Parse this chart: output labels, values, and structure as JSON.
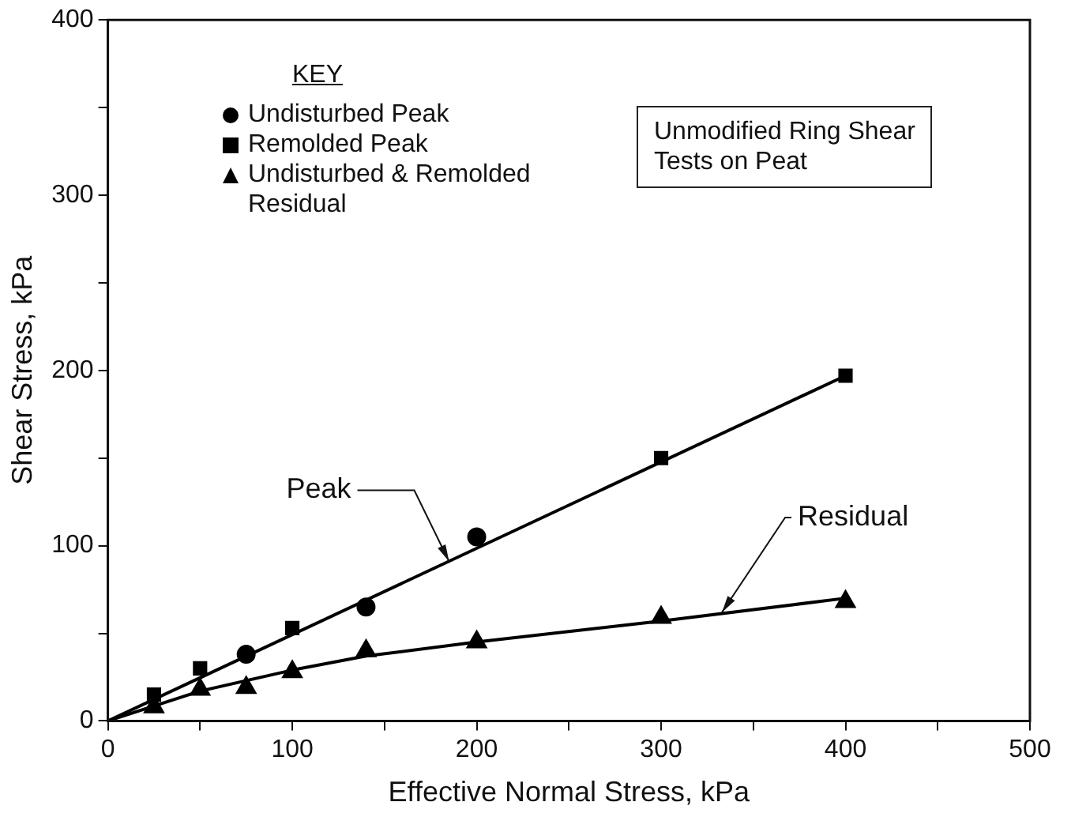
{
  "chart_data": {
    "type": "scatter",
    "xlabel": "Effective Normal Stress, kPa",
    "ylabel": "Shear Stress, kPa",
    "legend_title": "KEY",
    "legend": "top left",
    "xlim": [
      0,
      500
    ],
    "xticks": [
      0,
      {
        "value": 50,
        "label": null
      },
      100,
      {
        "value": 150,
        "label": null
      },
      200,
      {
        "value": 250,
        "label": null
      },
      300,
      {
        "value": 350,
        "label": null
      },
      400,
      {
        "value": 450,
        "label": null
      },
      500
    ],
    "ylim": [
      0,
      400
    ],
    "yticks": [
      0,
      {
        "value": 50,
        "label": null
      },
      100,
      {
        "value": 150,
        "label": null
      },
      200,
      {
        "value": 250,
        "label": null
      },
      300,
      {
        "value": 350,
        "label": null
      },
      400
    ],
    "grid": false,
    "series": [
      {
        "name": "Undisturbed Peak",
        "color": "#000000",
        "marker": "circle",
        "x": [
          75,
          140,
          200
        ],
        "values": [
          38,
          65,
          105
        ]
      },
      {
        "name": "Remolded Peak",
        "color": "#000000",
        "marker": "square",
        "x": [
          25,
          50,
          100,
          300,
          400
        ],
        "values": [
          15,
          30,
          53,
          150,
          197
        ]
      },
      {
        "name": "Undisturbed & Remolded Residual",
        "color": "#000000",
        "marker": "triangle",
        "x": [
          25,
          50,
          75,
          100,
          140,
          200,
          300,
          400
        ],
        "values": [
          8,
          18,
          19,
          28,
          40,
          45,
          59,
          68
        ]
      },
      {
        "type": "line",
        "color": "#000000",
        "marker": "none",
        "x": [
          0,
          400
        ],
        "values": [
          0,
          197
        ]
      },
      {
        "type": "line",
        "color": "#000000",
        "marker": "none",
        "x": [
          0,
          50,
          100,
          140,
          200,
          300,
          400
        ],
        "values": [
          0,
          17,
          29,
          37,
          45,
          57,
          70
        ]
      }
    ],
    "annotations": [
      {
        "text": "Peak",
        "x": 185,
        "y": 91
      },
      {
        "text": "Residual",
        "x": 333,
        "y": 62
      },
      "Unmodified Ring Shear\nTests on Peat"
    ]
  }
}
